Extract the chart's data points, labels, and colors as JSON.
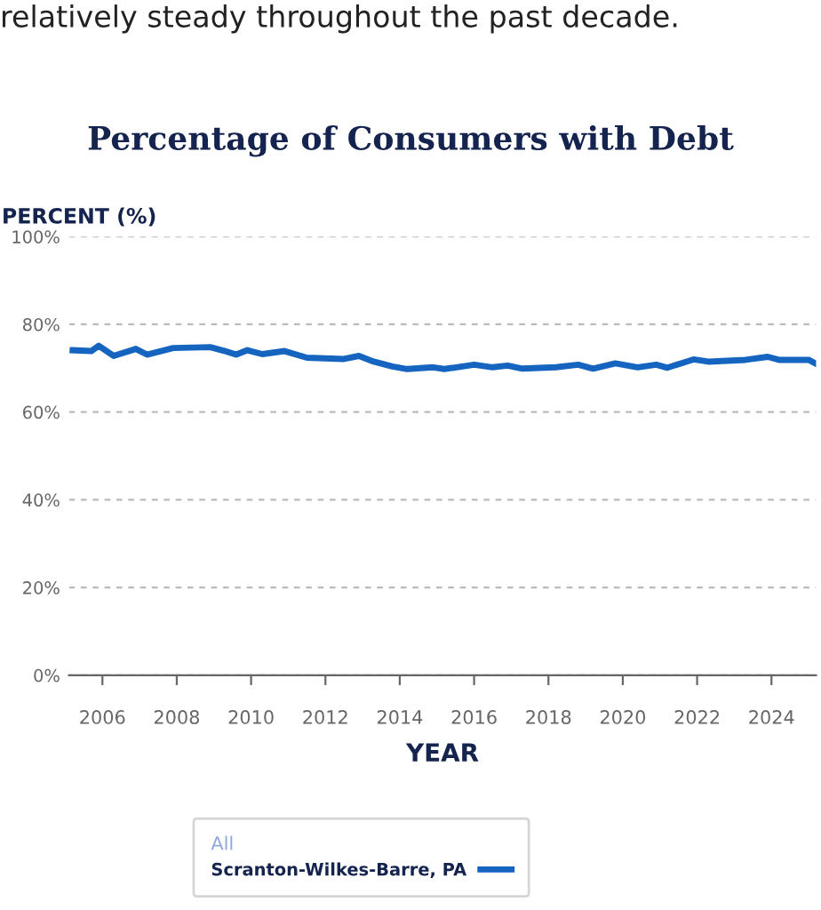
{
  "chart_data": {
    "type": "line",
    "title": "Percentage of Consumers with Debt",
    "annotations": [
      "relatively steady throughout the past decade."
    ],
    "xlabel": "YEAR",
    "ylabel": "PERCENT (%)",
    "legend_title": "All",
    "series": [
      {
        "name": "Scranton-Wilkes-Barre, PA",
        "color": "#1565c0",
        "x": [
          2005.2,
          2005.7,
          2005.9,
          2006.3,
          2006.9,
          2007.2,
          2007.9,
          2008.9,
          2009.3,
          2009.6,
          2009.9,
          2010.3,
          2010.9,
          2011.5,
          2012.5,
          2012.9,
          2013.3,
          2013.8,
          2014.2,
          2014.9,
          2015.2,
          2016.0,
          2016.5,
          2016.9,
          2017.3,
          2018.2,
          2018.8,
          2019.2,
          2019.8,
          2020.4,
          2020.9,
          2021.2,
          2021.9,
          2022.3,
          2023.3,
          2023.9,
          2024.2,
          2025.0,
          2025.2
        ],
        "values": [
          74.1,
          73.9,
          75.1,
          72.8,
          74.4,
          73.1,
          74.6,
          74.8,
          73.9,
          73.1,
          74.1,
          73.2,
          73.9,
          72.4,
          72.1,
          72.8,
          71.5,
          70.4,
          69.8,
          70.2,
          69.8,
          70.8,
          70.2,
          70.6,
          69.9,
          70.2,
          70.8,
          69.9,
          71.1,
          70.2,
          70.8,
          70.1,
          72.0,
          71.5,
          71.9,
          72.6,
          71.9,
          71.9,
          71.0
        ]
      }
    ],
    "xlim": [
      2005.1,
      2025.2
    ],
    "xticks": [
      2006,
      2008,
      2010,
      2012,
      2014,
      2016,
      2018,
      2020,
      2022,
      2024
    ],
    "ylim": [
      0,
      100
    ],
    "yticks": [
      {
        "value": 0,
        "label": "0%"
      },
      {
        "value": 20,
        "label": "20%"
      },
      {
        "value": 40,
        "label": "40%"
      },
      {
        "value": 60,
        "label": "60%"
      },
      {
        "value": 80,
        "label": "80%"
      },
      {
        "value": 100,
        "label": "100%"
      }
    ],
    "grid": "y",
    "legend": "bottom",
    "marker": "none",
    "line_style": "solid"
  }
}
